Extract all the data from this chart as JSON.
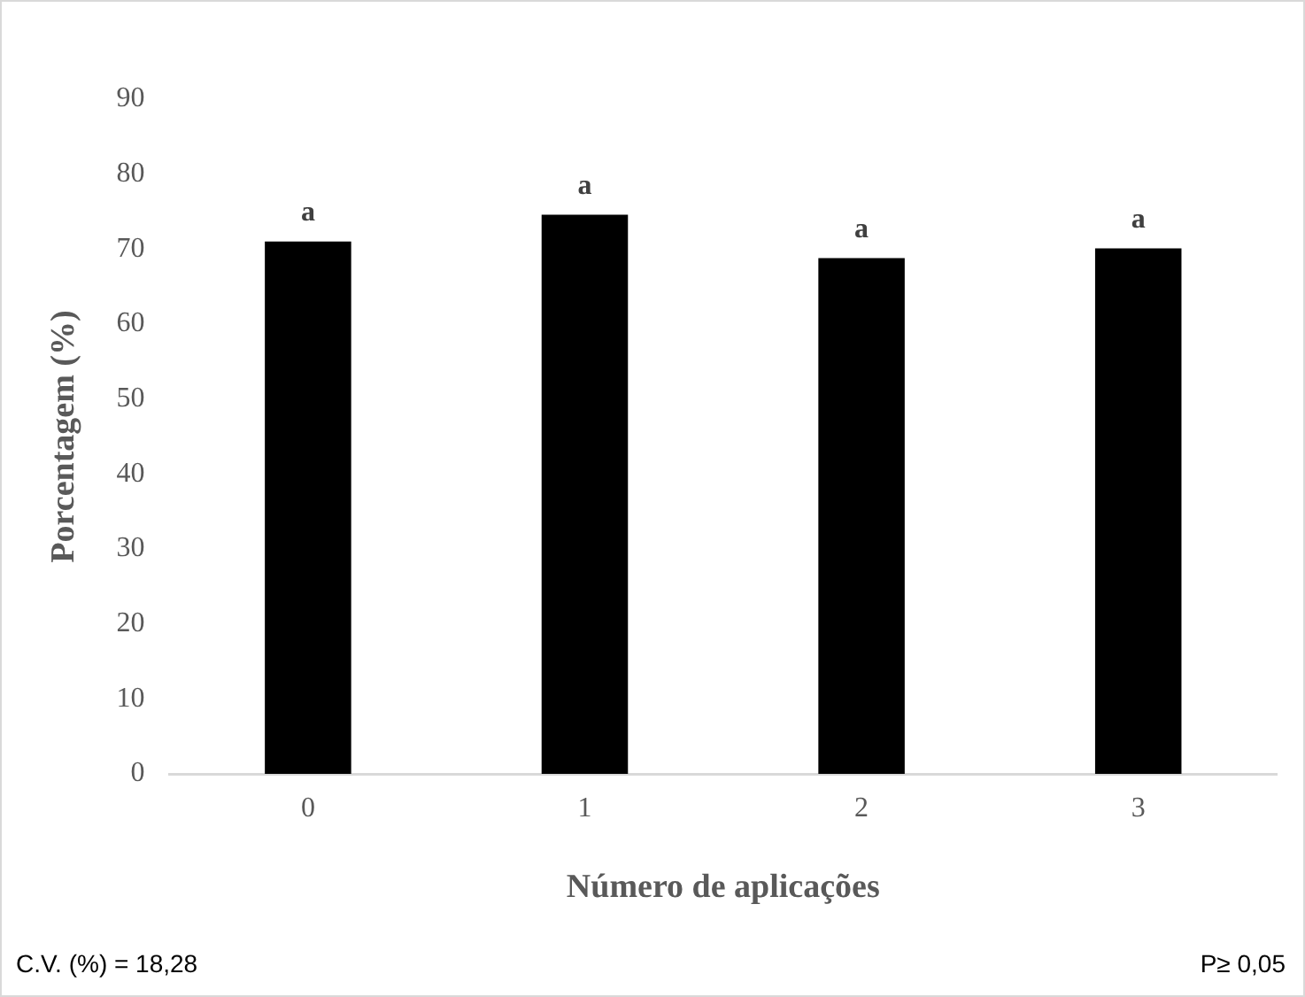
{
  "chart_data": {
    "type": "bar",
    "xlabel": "Número de aplicações",
    "ylabel": "Porcentagem (%)",
    "categories": [
      "0",
      "1",
      "2",
      "3"
    ],
    "values": [
      71,
      74.6,
      68.8,
      70.1
    ],
    "color": "#000000",
    "ylim": [
      0,
      90
    ],
    "yticks": [
      0,
      10,
      20,
      30,
      40,
      50,
      60,
      70,
      80,
      90
    ],
    "grid": false,
    "legend": false,
    "annotations": [
      {
        "text": "a",
        "x": "0",
        "y": 71
      },
      {
        "text": "a",
        "x": "1",
        "y": 74.6
      },
      {
        "text": "a",
        "x": "2",
        "y": 68.8
      },
      {
        "text": "a",
        "x": "3",
        "y": 70.1
      },
      "C.V. (%) = 18,28",
      "P≥ 0,05"
    ]
  }
}
